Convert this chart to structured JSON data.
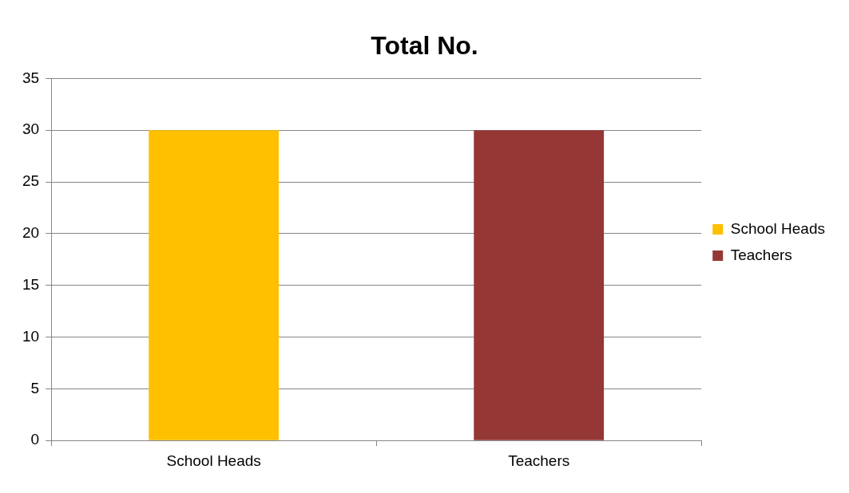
{
  "chart_data": {
    "type": "bar",
    "title": "Total No.",
    "categories": [
      "School Heads",
      "Teachers"
    ],
    "series": [
      {
        "name": "School Heads",
        "color": "#ffc000",
        "values": [
          30,
          null
        ]
      },
      {
        "name": "Teachers",
        "color": "#953735",
        "values": [
          null,
          30
        ]
      }
    ],
    "ylim": [
      0,
      35
    ],
    "yticks": [
      0,
      5,
      10,
      15,
      20,
      25,
      30,
      35
    ],
    "grid": "y",
    "legend": "right"
  }
}
